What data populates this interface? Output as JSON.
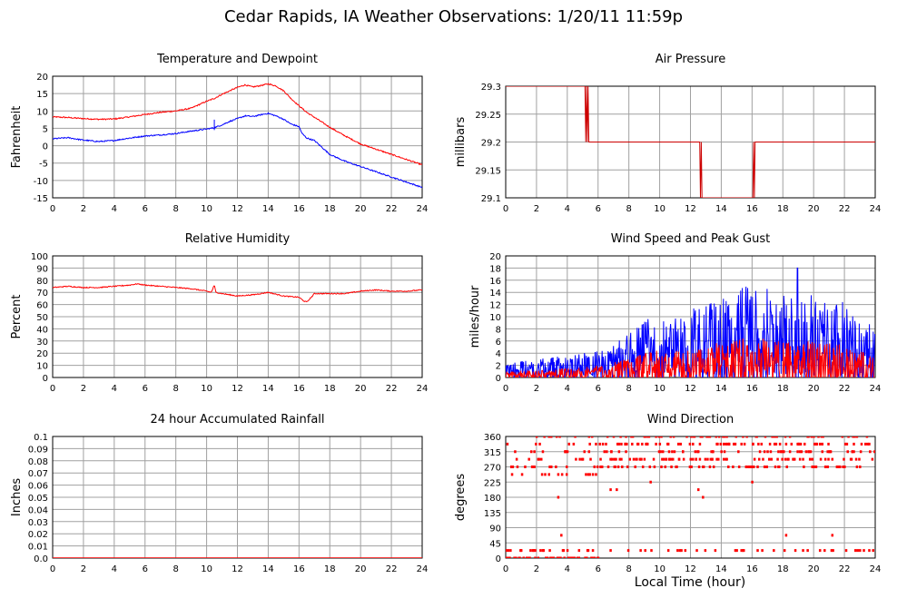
{
  "page": {
    "title": "Cedar Rapids, IA Weather Observations: 1/20/11 11:59p",
    "x_axis_label": "Local Time (hour)"
  },
  "chart_data": [
    {
      "id": "temp",
      "type": "line",
      "title": "Temperature and Dewpoint",
      "xlabel": "",
      "ylabel": "Fahrenheit",
      "xlim": [
        0,
        24
      ],
      "ylim": [
        -15,
        20
      ],
      "xticks": [
        0,
        2,
        4,
        6,
        8,
        10,
        12,
        14,
        16,
        18,
        20,
        22,
        24
      ],
      "yticks": [
        -15,
        -10,
        -5,
        0,
        5,
        10,
        15,
        20
      ],
      "grid": true,
      "series": [
        {
          "color": "#ff0000",
          "x": [
            0,
            1,
            2,
            3,
            4,
            5,
            6,
            7,
            8,
            9,
            10,
            10.5,
            11,
            11.5,
            12,
            12.5,
            13,
            13.5,
            14,
            14.5,
            15,
            15.5,
            16,
            16.5,
            17,
            18,
            19,
            20,
            21,
            22,
            23,
            24
          ],
          "y": [
            8.3,
            8.1,
            7.8,
            7.6,
            7.7,
            8.3,
            9,
            9.6,
            10,
            10.8,
            12.8,
            13.6,
            14.8,
            15.8,
            16.8,
            17.5,
            16.9,
            17.3,
            17.8,
            17.2,
            15.8,
            13.5,
            11.5,
            9.6,
            8.2,
            5.3,
            2.8,
            0.5,
            -1,
            -2.5,
            -4,
            -5.5
          ]
        },
        {
          "color": "#0000ff",
          "x": [
            0,
            1,
            2,
            3,
            4,
            5,
            6,
            7,
            8,
            9,
            10,
            10.5,
            11,
            11.5,
            12,
            12.5,
            13,
            13.5,
            14,
            14.5,
            15,
            15.5,
            16,
            16.2,
            16.5,
            17,
            17.5,
            18,
            19,
            20,
            21,
            22,
            23,
            24
          ],
          "y": [
            2,
            2.3,
            1.6,
            1.2,
            1.5,
            2.2,
            2.8,
            3.1,
            3.5,
            4.2,
            4.8,
            5.2,
            6,
            7,
            7.8,
            8.6,
            8.4,
            8.9,
            9.3,
            8.6,
            7.6,
            6.2,
            5.5,
            3.5,
            2.2,
            1.5,
            -0.5,
            -2.5,
            -4.5,
            -6,
            -7.5,
            -9,
            -10.5,
            -12
          ]
        }
      ]
    },
    {
      "id": "pressure",
      "type": "line",
      "title": "Air Pressure",
      "xlabel": "",
      "ylabel": "millibars",
      "xlim": [
        0,
        24
      ],
      "ylim": [
        29.1,
        29.3
      ],
      "xticks": [
        0,
        2,
        4,
        6,
        8,
        10,
        12,
        14,
        16,
        18,
        20,
        22,
        24
      ],
      "yticks": [
        29.1,
        29.15,
        29.2,
        29.25,
        29.3
      ],
      "grid": true,
      "series": [
        {
          "color": "#cc0000",
          "x": [
            0,
            5.15,
            5.2,
            5.25,
            5.3,
            5.35,
            5.4,
            12.6,
            12.65,
            12.7,
            12.75,
            12.8,
            16.05,
            16.1,
            16.15,
            16.2,
            24
          ],
          "y": [
            29.3,
            29.3,
            29.2,
            29.3,
            29.2,
            29.3,
            29.2,
            29.2,
            29.1,
            29.2,
            29.1,
            29.1,
            29.1,
            29.2,
            29.1,
            29.2,
            29.2
          ]
        }
      ]
    },
    {
      "id": "humidity",
      "type": "line",
      "title": "Relative Humidity",
      "xlabel": "",
      "ylabel": "Percent",
      "xlim": [
        0,
        24
      ],
      "ylim": [
        0,
        100
      ],
      "xticks": [
        0,
        2,
        4,
        6,
        8,
        10,
        12,
        14,
        16,
        18,
        20,
        22,
        24
      ],
      "yticks": [
        0,
        10,
        20,
        30,
        40,
        50,
        60,
        70,
        80,
        90,
        100
      ],
      "grid": true,
      "series": [
        {
          "color": "#ff0000",
          "x": [
            0,
            1,
            2,
            3,
            4,
            5,
            5.5,
            6,
            7,
            8,
            9,
            10,
            10.3,
            10.5,
            10.6,
            11,
            12,
            13,
            14,
            15,
            16,
            16.3,
            16.5,
            16.8,
            17,
            18,
            19,
            20,
            21,
            22,
            23,
            24
          ],
          "y": [
            74,
            75,
            74,
            74,
            75,
            76,
            77,
            76,
            75,
            74,
            73,
            71,
            70,
            76,
            70,
            69,
            67,
            68,
            70,
            67,
            66,
            63,
            62,
            66,
            69,
            69,
            69,
            71,
            72,
            71,
            71,
            72
          ]
        }
      ]
    },
    {
      "id": "wind",
      "type": "line",
      "title": "Wind Speed and Peak Gust",
      "xlabel": "",
      "ylabel": "miles/hour",
      "xlim": [
        0,
        24
      ],
      "ylim": [
        0,
        20
      ],
      "xticks": [
        0,
        2,
        4,
        6,
        8,
        10,
        12,
        14,
        16,
        18,
        20,
        22,
        24
      ],
      "yticks": [
        0,
        2,
        4,
        6,
        8,
        10,
        12,
        14,
        16,
        18,
        20
      ],
      "grid": true,
      "series": [
        {
          "color": "#0000ff",
          "peak_gust_max": 18
        },
        {
          "color": "#ff0000",
          "wind_speed_max": 8
        }
      ]
    },
    {
      "id": "rain",
      "type": "line",
      "title": "24 hour Accumulated Rainfall",
      "xlabel": "",
      "ylabel": "Inches",
      "xlim": [
        0,
        24
      ],
      "ylim": [
        0,
        0.1
      ],
      "xticks": [
        0,
        2,
        4,
        6,
        8,
        10,
        12,
        14,
        16,
        18,
        20,
        22,
        24
      ],
      "yticks": [
        0.0,
        0.01,
        0.02,
        0.03,
        0.04,
        0.05,
        0.06,
        0.07,
        0.08,
        0.09,
        0.1
      ],
      "ytick_labels": [
        "0.0",
        "0.01",
        "0.02",
        "0.03",
        "0.04",
        "0.05",
        "0.06",
        "0.07",
        "0.08",
        "0.09",
        "0.1"
      ],
      "grid": true,
      "series": [
        {
          "color": "#ff0000",
          "x": [
            0,
            24
          ],
          "y": [
            0,
            0
          ]
        }
      ]
    },
    {
      "id": "direction",
      "type": "scatter",
      "title": "Wind Direction",
      "xlabel": "",
      "ylabel": "degrees",
      "xlim": [
        0,
        24
      ],
      "ylim": [
        0,
        360
      ],
      "xticks": [
        0,
        2,
        4,
        6,
        8,
        10,
        12,
        14,
        16,
        18,
        20,
        22,
        24
      ],
      "yticks": [
        0,
        45,
        90,
        135,
        180,
        225,
        270,
        315,
        360
      ],
      "grid": true,
      "series": [
        {
          "color": "#ff0000"
        }
      ]
    }
  ]
}
